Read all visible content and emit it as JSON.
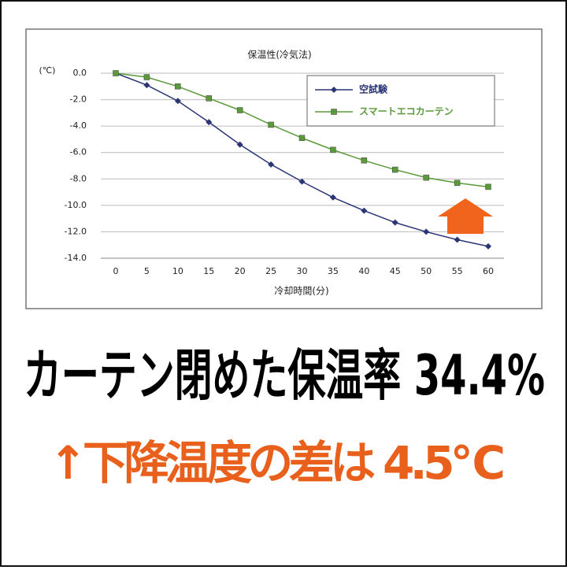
{
  "chart_data": {
    "type": "line",
    "title": "保温性(冷気法)",
    "y_unit": "(℃)",
    "x_label": "冷却時間(分)",
    "x": [
      0,
      5,
      10,
      15,
      20,
      25,
      30,
      35,
      40,
      45,
      50,
      55,
      60
    ],
    "xlim": [
      0,
      60
    ],
    "xticks": [
      0,
      5,
      10,
      15,
      20,
      25,
      30,
      35,
      40,
      45,
      50,
      55,
      60
    ],
    "ylim": [
      -14,
      0
    ],
    "yticks": [
      {
        "value": 0,
        "label": "0.0"
      },
      {
        "value": -2,
        "label": "-2.0"
      },
      {
        "value": -4,
        "label": "-4.0"
      },
      {
        "value": -6,
        "label": "-6.0"
      },
      {
        "value": -8,
        "label": "-8.0"
      },
      {
        "value": -10,
        "label": "-10.0"
      },
      {
        "value": -12,
        "label": "-12.0"
      },
      {
        "value": -14,
        "label": "-14.0"
      }
    ],
    "grid": true,
    "legend": "upper right",
    "series": [
      {
        "name": "空試験",
        "color": "#2b3575",
        "marker": "diamond",
        "values": [
          0,
          -0.9,
          -2.1,
          -3.7,
          -5.4,
          -6.9,
          -8.2,
          -9.4,
          -10.4,
          -11.3,
          -12.0,
          -12.6,
          -13.1
        ]
      },
      {
        "name": "スマートエコカーテン",
        "color": "#5b9a3a",
        "marker": "square",
        "values": [
          0,
          -0.3,
          -1.0,
          -1.9,
          -2.8,
          -3.9,
          -4.9,
          -5.8,
          -6.6,
          -7.3,
          -7.9,
          -8.3,
          -8.6
        ]
      }
    ]
  },
  "headline": "カーテン閉めた保温率 34.4%",
  "subline": "↑下降温度の差は 4.5℃"
}
